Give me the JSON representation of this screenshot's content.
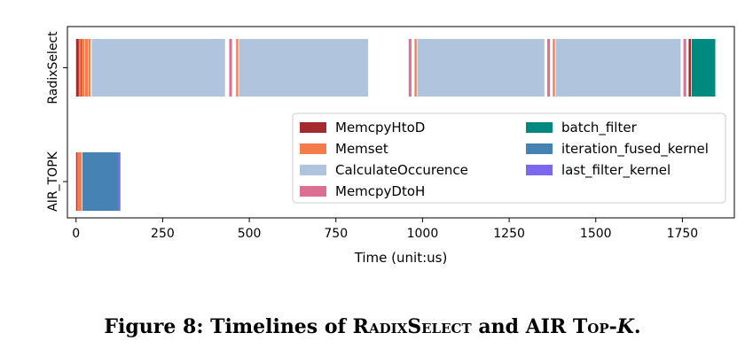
{
  "chart_data": {
    "type": "gantt",
    "xlabel": "Time (unit:us)",
    "xlim": [
      -25,
      1900
    ],
    "xticks": [
      0,
      250,
      500,
      750,
      1000,
      1250,
      1500,
      1750
    ],
    "xtick_labels": [
      "0",
      "250",
      "500",
      "750",
      "1000",
      "1250",
      "1500",
      "1750"
    ],
    "rows": [
      "RadixSelect",
      "AIR_TOPK"
    ],
    "legend_position": "center-right",
    "kernels": [
      {
        "name": "MemcpyHtoD",
        "color": "#a52a2f"
      },
      {
        "name": "Memset",
        "color": "#f47c4c"
      },
      {
        "name": "CalculateOccurence",
        "color": "#b0c4de"
      },
      {
        "name": "MemcpyDtoH",
        "color": "#db7093"
      },
      {
        "name": "batch_filter",
        "color": "#00897f"
      },
      {
        "name": "iteration_fused_kernel",
        "color": "#4682b4"
      },
      {
        "name": "last_filter_kernel",
        "color": "#7b68ee"
      }
    ],
    "segments": [
      {
        "row": "RadixSelect",
        "kernel": "MemcpyHtoD",
        "start": 0,
        "end": 8
      },
      {
        "row": "RadixSelect",
        "kernel": "Memset",
        "start": 8,
        "end": 14
      },
      {
        "row": "RadixSelect",
        "kernel": "MemcpyHtoD",
        "start": 14,
        "end": 16
      },
      {
        "row": "RadixSelect",
        "kernel": "Memset",
        "start": 16,
        "end": 24
      },
      {
        "row": "RadixSelect",
        "kernel": "Memset",
        "start": 26,
        "end": 34
      },
      {
        "row": "RadixSelect",
        "kernel": "Memset",
        "start": 36,
        "end": 42
      },
      {
        "row": "RadixSelect",
        "kernel": "CalculateOccurence",
        "start": 45,
        "end": 430
      },
      {
        "row": "RadixSelect",
        "kernel": "MemcpyDtoH",
        "start": 442,
        "end": 450
      },
      {
        "row": "RadixSelect",
        "kernel": "Memset",
        "start": 462,
        "end": 468
      },
      {
        "row": "RadixSelect",
        "kernel": "CalculateOccurence",
        "start": 470,
        "end": 843
      },
      {
        "row": "RadixSelect",
        "kernel": "MemcpyDtoH",
        "start": 960,
        "end": 968
      },
      {
        "row": "RadixSelect",
        "kernel": "Memset",
        "start": 977,
        "end": 983
      },
      {
        "row": "RadixSelect",
        "kernel": "CalculateOccurence",
        "start": 985,
        "end": 1352
      },
      {
        "row": "RadixSelect",
        "kernel": "MemcpyDtoH",
        "start": 1360,
        "end": 1368
      },
      {
        "row": "RadixSelect",
        "kernel": "Memset",
        "start": 1376,
        "end": 1382
      },
      {
        "row": "RadixSelect",
        "kernel": "CalculateOccurence",
        "start": 1384,
        "end": 1745
      },
      {
        "row": "RadixSelect",
        "kernel": "MemcpyDtoH",
        "start": 1753,
        "end": 1761
      },
      {
        "row": "RadixSelect",
        "kernel": "MemcpyHtoD",
        "start": 1768,
        "end": 1775
      },
      {
        "row": "RadixSelect",
        "kernel": "batch_filter",
        "start": 1777,
        "end": 1845
      },
      {
        "row": "AIR_TOPK",
        "kernel": "MemcpyHtoD",
        "start": 0,
        "end": 3
      },
      {
        "row": "AIR_TOPK",
        "kernel": "Memset",
        "start": 3,
        "end": 16
      },
      {
        "row": "AIR_TOPK",
        "kernel": "iteration_fused_kernel",
        "start": 18,
        "end": 122
      },
      {
        "row": "AIR_TOPK",
        "kernel": "last_filter_kernel",
        "start": 122,
        "end": 128
      }
    ]
  },
  "caption": {
    "prefix": "Figure 8: Timelines of ",
    "name1": "RadixSelect",
    "mid": " and AIR ",
    "name2": "Top-",
    "k": "K",
    "end": "."
  }
}
